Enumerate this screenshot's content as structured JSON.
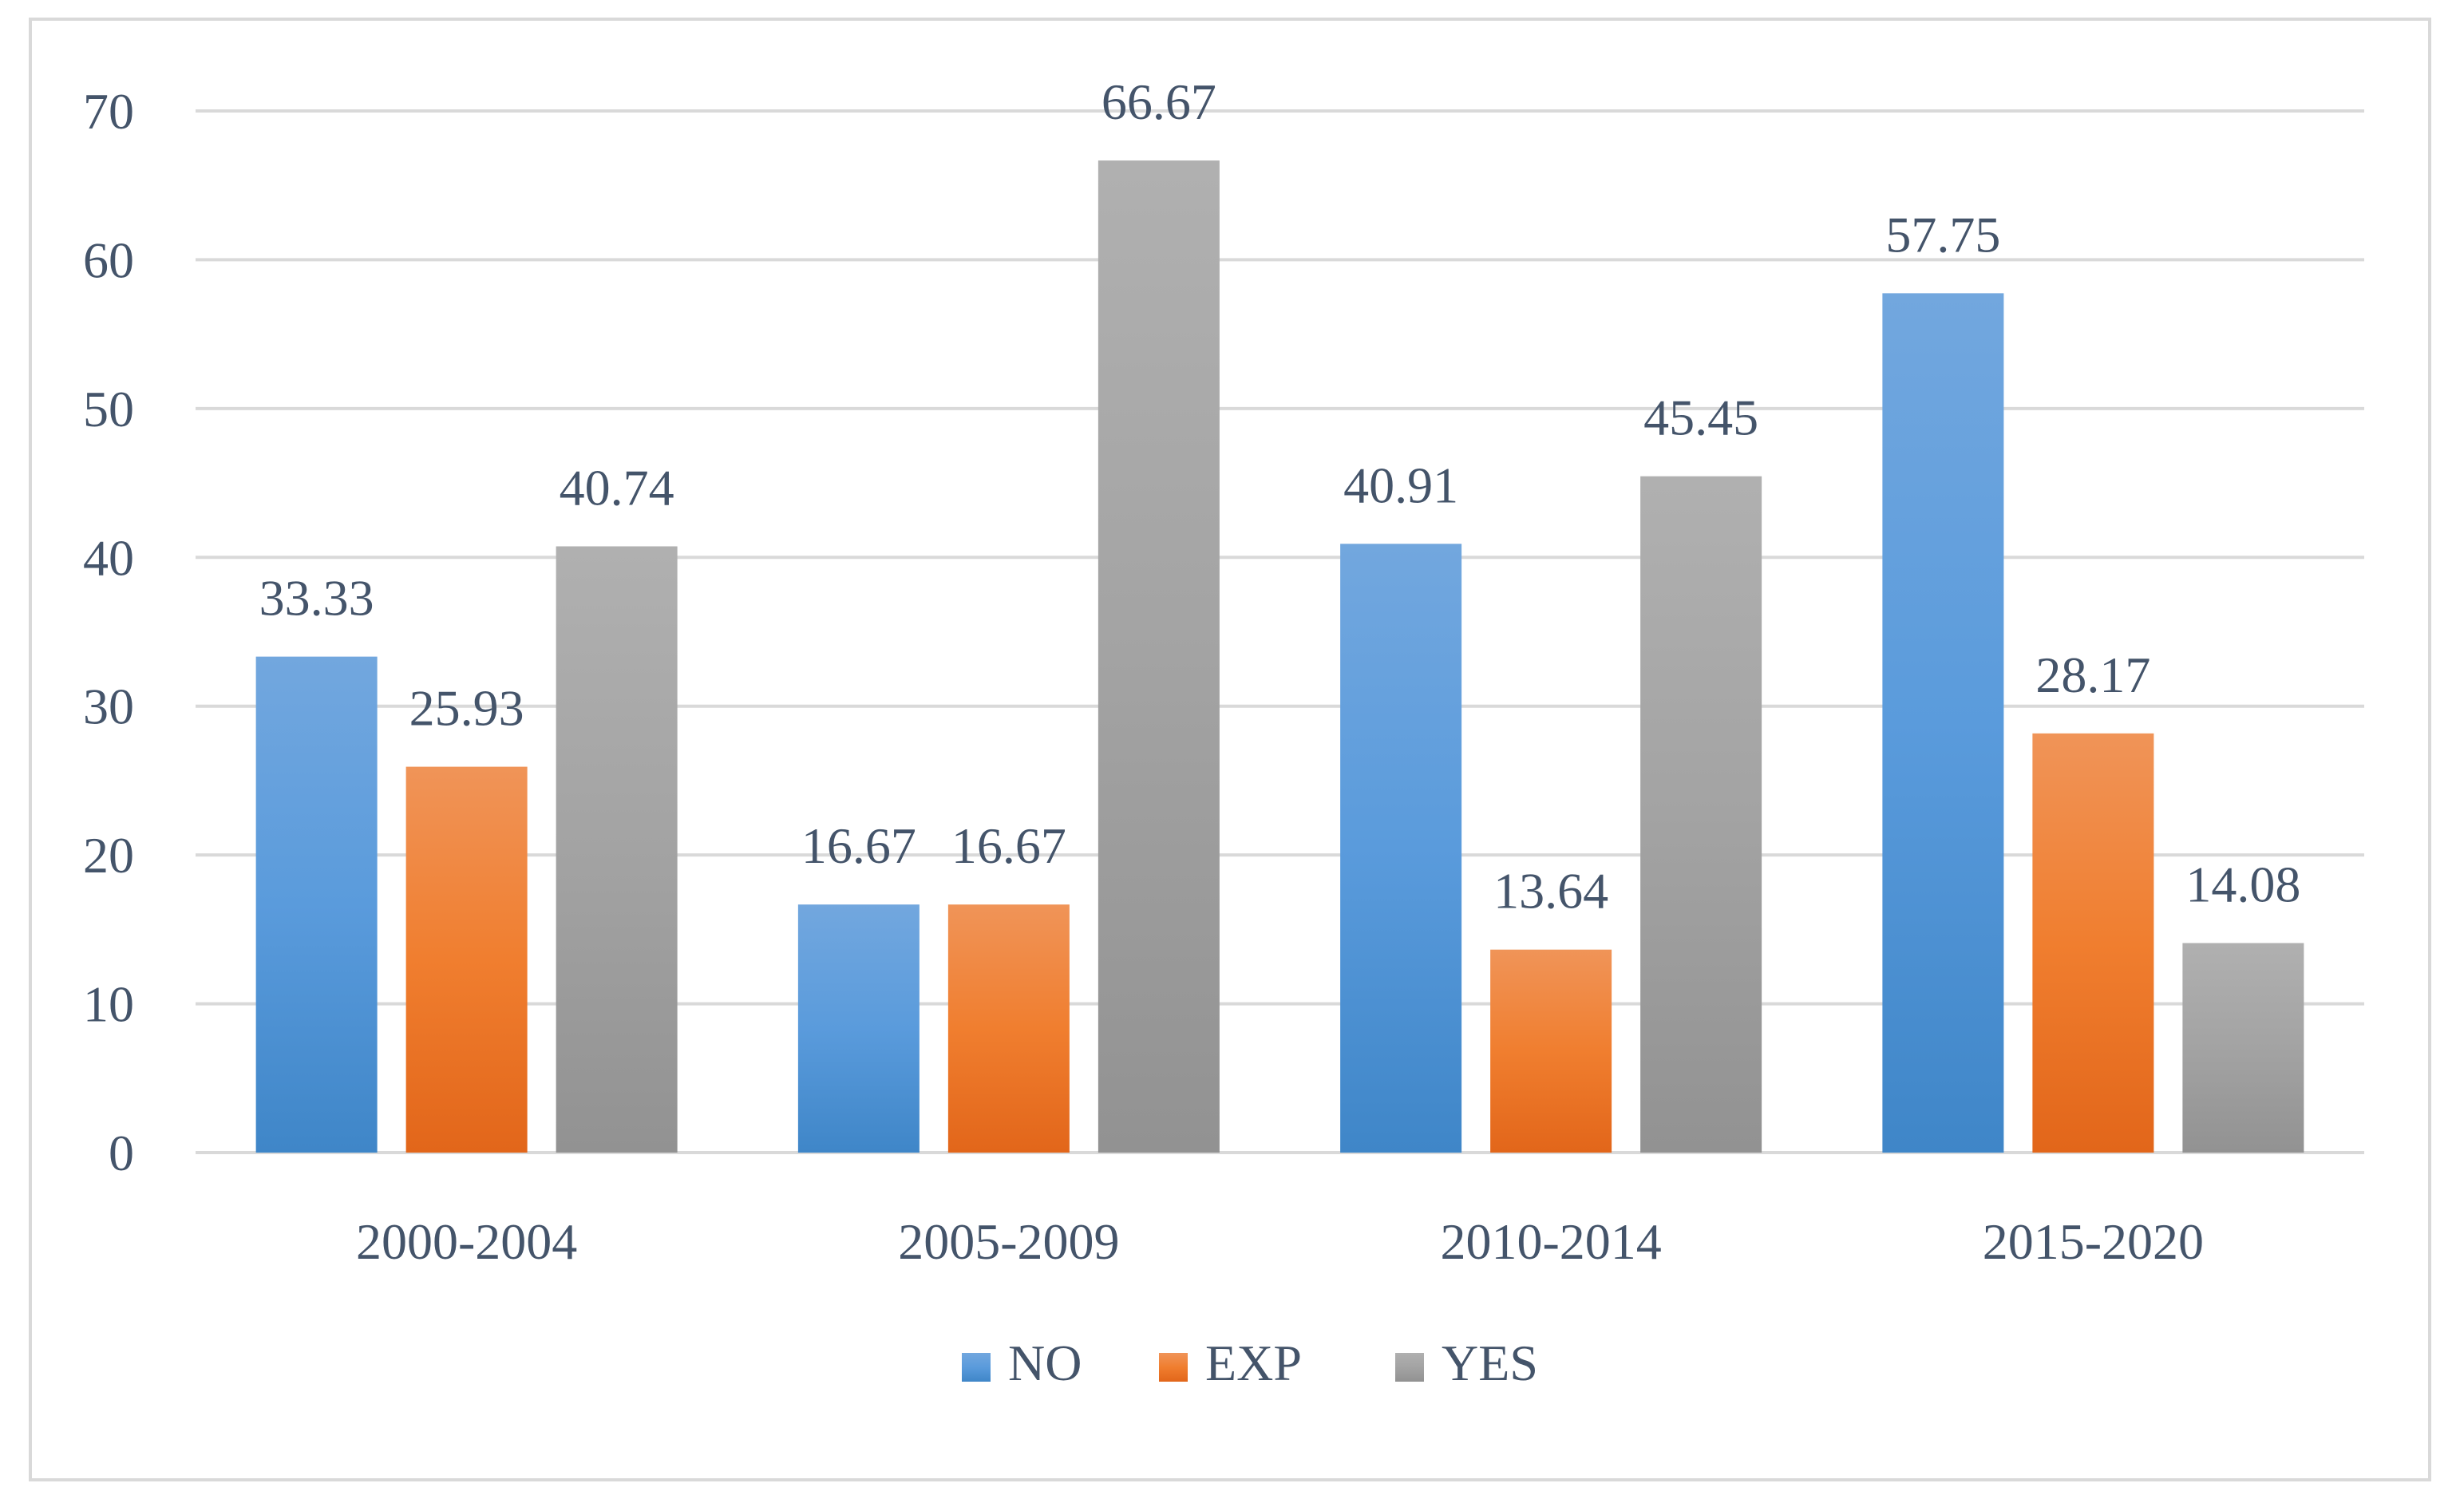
{
  "chart_data": {
    "type": "bar",
    "title": "",
    "xlabel": "",
    "ylabel": "",
    "ylim": [
      0,
      70
    ],
    "yticks": [
      0,
      10,
      20,
      30,
      40,
      50,
      60,
      70
    ],
    "grid": true,
    "legend_position": "bottom",
    "categories": [
      "2000-2004",
      "2005-2009",
      "2010-2014",
      "2015-2020"
    ],
    "series": [
      {
        "name": "NO",
        "values": [
          33.33,
          16.67,
          40.91,
          57.75
        ],
        "labels": [
          "33.33",
          "16.67",
          "40.91",
          "57.75"
        ],
        "color": "#5b9bd5"
      },
      {
        "name": "EXP",
        "values": [
          25.93,
          16.67,
          13.64,
          28.17
        ],
        "labels": [
          "25.93",
          "16.67",
          "13.64",
          "28.17"
        ],
        "color": "#ed7d31"
      },
      {
        "name": "YES",
        "values": [
          40.74,
          66.67,
          45.45,
          14.08
        ],
        "labels": [
          "40.74",
          "66.67",
          "45.45",
          "14.08"
        ],
        "color": "#a5a5a5"
      }
    ]
  }
}
